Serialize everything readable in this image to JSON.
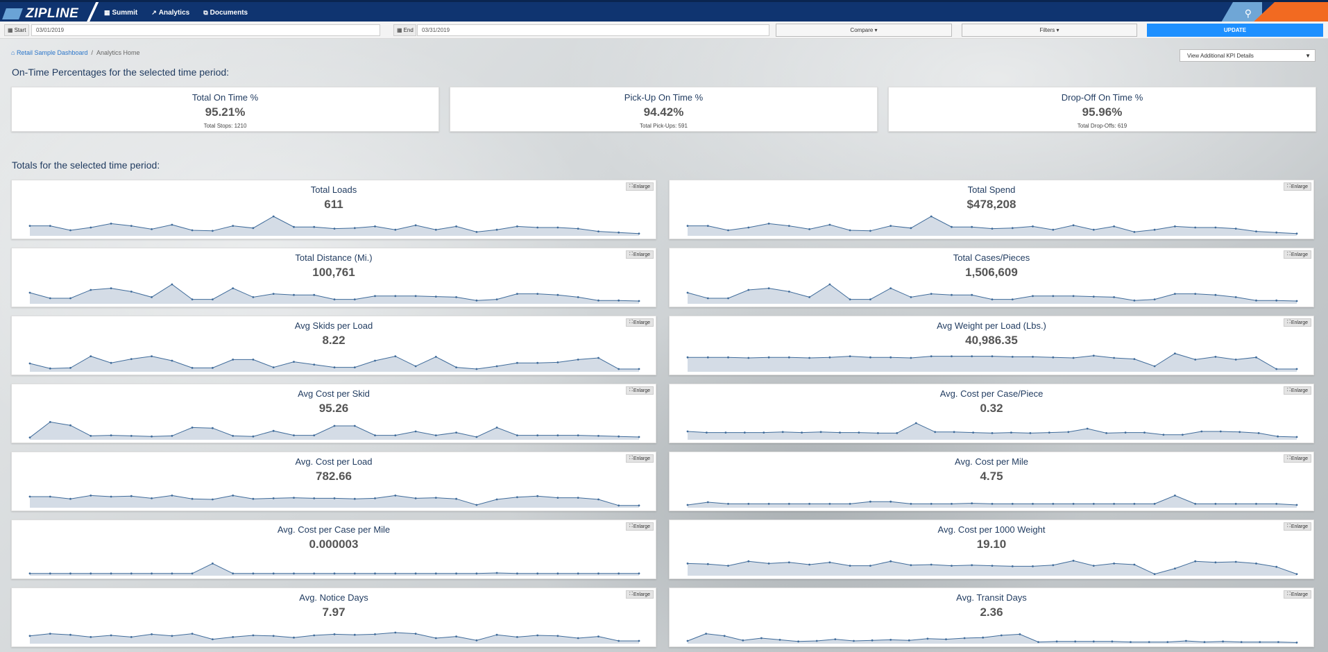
{
  "brand": {
    "name": "ZIPLINE"
  },
  "nav": {
    "items": [
      {
        "icon": "building-icon",
        "label": "Summit"
      },
      {
        "icon": "line-chart-icon",
        "label": "Analytics"
      },
      {
        "icon": "documents-icon",
        "label": "Documents"
      }
    ]
  },
  "filters": {
    "start_label": "Start",
    "start_value": "03/01/2019",
    "end_label": "End",
    "end_value": "03/31/2019",
    "compare_label": "Compare ▾",
    "filters_label": "Filters ▾",
    "update_label": "UPDATE"
  },
  "breadcrumb": {
    "home": "Retail Sample Dashboard",
    "separator": "/",
    "current": "Analytics Home"
  },
  "kpi_select": {
    "value": "View Additional KPI Details"
  },
  "sections": {
    "ontime_title": "On-Time Percentages for the selected time period:",
    "totals_title": "Totals for the selected time period:"
  },
  "ontime_cards": [
    {
      "title": "Total On Time %",
      "value": "95.21%",
      "sub": "Total Stops: 1210"
    },
    {
      "title": "Pick-Up On Time %",
      "value": "94.42%",
      "sub": "Total Pick-Ups: 591"
    },
    {
      "title": "Drop-Off On Time %",
      "value": "95.96%",
      "sub": "Total Drop-Offs: 619"
    }
  ],
  "enlarge_label": "Enlarge",
  "chart_data": [
    {
      "type": "area",
      "title": "Total Loads",
      "value": "611",
      "values": [
        18,
        18,
        10,
        15,
        22,
        18,
        12,
        20,
        10,
        9,
        18,
        14,
        35,
        16,
        16,
        13,
        14,
        17,
        11,
        19,
        11,
        17,
        7,
        11,
        17,
        15,
        15,
        13,
        8,
        6,
        4
      ]
    },
    {
      "type": "area",
      "title": "Total Spend",
      "value": "$478,208",
      "values": [
        18,
        18,
        10,
        15,
        22,
        18,
        12,
        20,
        10,
        9,
        18,
        14,
        35,
        16,
        16,
        13,
        14,
        17,
        11,
        19,
        11,
        17,
        7,
        11,
        17,
        15,
        15,
        13,
        8,
        6,
        4
      ]
    },
    {
      "type": "area",
      "title": "Total Distance (Mi.)",
      "value": "100,761",
      "values": [
        20,
        10,
        10,
        25,
        28,
        22,
        12,
        35,
        8,
        8,
        28,
        12,
        18,
        16,
        16,
        8,
        8,
        14,
        14,
        14,
        13,
        12,
        6,
        8,
        18,
        18,
        16,
        12,
        6,
        6,
        5
      ]
    },
    {
      "type": "area",
      "title": "Total Cases/Pieces",
      "value": "1,506,609",
      "values": [
        20,
        10,
        10,
        25,
        28,
        22,
        12,
        35,
        8,
        8,
        28,
        12,
        18,
        16,
        16,
        8,
        8,
        14,
        14,
        14,
        13,
        12,
        6,
        8,
        18,
        18,
        16,
        12,
        6,
        6,
        5
      ]
    },
    {
      "type": "area",
      "title": "Avg Skids per Load",
      "value": "8.22",
      "values": [
        15,
        6,
        7,
        28,
        16,
        23,
        28,
        20,
        7,
        7,
        22,
        22,
        8,
        18,
        13,
        8,
        8,
        20,
        28,
        10,
        27,
        8,
        5,
        10,
        16,
        16,
        17,
        22,
        25,
        5,
        5
      ]
    },
    {
      "type": "area",
      "title": "Avg Weight per Load (Lbs.)",
      "value": "40,986.35",
      "values": [
        26,
        26,
        26,
        25,
        26,
        26,
        25,
        26,
        28,
        26,
        26,
        25,
        28,
        28,
        28,
        28,
        27,
        27,
        26,
        25,
        29,
        25,
        23,
        10,
        33,
        22,
        27,
        22,
        26,
        5,
        5
      ]
    },
    {
      "type": "area",
      "title": "Avg Cost per Skid",
      "value": "95.26",
      "values": [
        4,
        32,
        26,
        7,
        8,
        7,
        6,
        7,
        22,
        21,
        7,
        6,
        16,
        8,
        8,
        25,
        25,
        8,
        8,
        15,
        8,
        13,
        5,
        22,
        8,
        8,
        8,
        8,
        7,
        6,
        5
      ]
    },
    {
      "type": "area",
      "title": "Avg. Cost per Case/Piece",
      "value": "0.32",
      "values": [
        15,
        13,
        13,
        13,
        13,
        14,
        13,
        14,
        13,
        13,
        12,
        12,
        30,
        14,
        14,
        13,
        12,
        13,
        12,
        13,
        14,
        20,
        12,
        13,
        13,
        9,
        9,
        15,
        15,
        14,
        12,
        6,
        5
      ]
    },
    {
      "type": "area",
      "title": "Avg. Cost per Load",
      "value": "782.66",
      "values": [
        20,
        20,
        16,
        22,
        20,
        21,
        17,
        22,
        16,
        15,
        22,
        16,
        17,
        18,
        17,
        17,
        16,
        17,
        22,
        17,
        18,
        16,
        5,
        15,
        19,
        21,
        18,
        18,
        15,
        4,
        4
      ]
    },
    {
      "type": "area",
      "title": "Avg. Cost per Mile",
      "value": "4.75",
      "values": [
        5,
        10,
        7,
        7,
        7,
        7,
        7,
        7,
        7,
        11,
        11,
        7,
        7,
        7,
        8,
        7,
        7,
        7,
        7,
        7,
        7,
        7,
        7,
        7,
        22,
        7,
        7,
        7,
        7,
        7,
        5
      ]
    },
    {
      "type": "area",
      "title": "Avg. Cost per Case per Mile",
      "value": "0.000003",
      "values": [
        4,
        4,
        4,
        4,
        4,
        4,
        4,
        4,
        4,
        22,
        4,
        4,
        4,
        4,
        4,
        4,
        4,
        4,
        4,
        4,
        4,
        4,
        4,
        5,
        4,
        4,
        4,
        4,
        4,
        4,
        4
      ]
    },
    {
      "type": "area",
      "title": "Avg. Cost per 1000 Weight",
      "value": "19.10",
      "values": [
        22,
        21,
        18,
        26,
        22,
        24,
        20,
        24,
        18,
        18,
        26,
        19,
        20,
        18,
        19,
        18,
        17,
        17,
        19,
        27,
        18,
        22,
        20,
        3,
        13,
        26,
        24,
        25,
        22,
        16,
        3
      ]
    },
    {
      "type": "area",
      "title": "Avg. Notice Days",
      "value": "7.97",
      "values": [
        14,
        18,
        16,
        12,
        15,
        12,
        17,
        14,
        18,
        8,
        12,
        15,
        14,
        11,
        15,
        17,
        16,
        17,
        20,
        18,
        10,
        13,
        6,
        16,
        12,
        15,
        14,
        10,
        13,
        5,
        5
      ]
    },
    {
      "type": "area",
      "title": "Avg. Transit Days",
      "value": "2.36",
      "values": [
        5,
        18,
        14,
        6,
        10,
        7,
        4,
        5,
        8,
        5,
        6,
        7,
        6,
        9,
        8,
        10,
        11,
        15,
        17,
        3,
        4,
        4,
        4,
        4,
        3,
        3,
        3,
        5,
        3,
        4,
        3,
        3,
        3,
        2
      ]
    }
  ],
  "colors": {
    "nav": "#0f3470",
    "accent": "#1e90ff",
    "orange": "#f26a21",
    "area_fill": "#d4dce6",
    "area_line": "#3f6b9a"
  }
}
